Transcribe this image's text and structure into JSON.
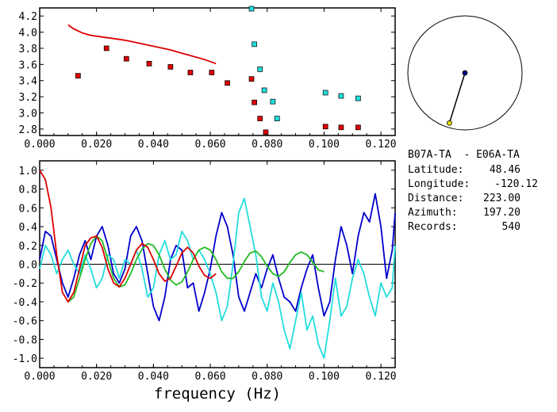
{
  "colors": {
    "red": "#dd0000",
    "blue": "#0000cc",
    "cyan": "#22dddd",
    "green": "#22bb22",
    "black": "#000000",
    "station_a_marker": "#000088",
    "station_b_marker": "#dddd00"
  },
  "info": {
    "station_pair": "B07A-TA  - E06A-TA",
    "latitude_label": "Latitude:",
    "latitude_value": "48.46",
    "longitude_label": "Longitude:",
    "longitude_value": "-120.12",
    "distance_label": "Distance:",
    "distance_value": "223.00",
    "azimuth_label": "Azimuth:",
    "azimuth_value": "197.20",
    "records_label": "Records:",
    "records_value": "540"
  },
  "map_inset": {
    "azimuth_deg": 197.2
  },
  "chart_data": [
    {
      "type": "scatter",
      "xlim": [
        0.0,
        0.125
      ],
      "ylim": [
        2.72,
        4.3
      ],
      "x_ticks": [
        "0.000",
        "0.020",
        "0.040",
        "0.060",
        "0.080",
        "0.100",
        "0.120"
      ],
      "y_ticks": [
        "2.8",
        "3.0",
        "3.2",
        "3.4",
        "3.6",
        "3.8",
        "4.0",
        "4.2"
      ],
      "x_tick_values": [
        0.0,
        0.02,
        0.04,
        0.06,
        0.08,
        0.1,
        0.12
      ],
      "y_tick_values": [
        2.8,
        3.0,
        3.2,
        3.4,
        3.6,
        3.8,
        4.0,
        4.2
      ],
      "series": [
        {
          "style": "line",
          "color": "red",
          "x": [
            0.01,
            0.012,
            0.015,
            0.018,
            0.022,
            0.026,
            0.03,
            0.034,
            0.038,
            0.042,
            0.046,
            0.05,
            0.054,
            0.058,
            0.062
          ],
          "y": [
            4.09,
            4.04,
            3.99,
            3.96,
            3.94,
            3.92,
            3.9,
            3.87,
            3.84,
            3.81,
            3.78,
            3.74,
            3.7,
            3.66,
            3.61
          ]
        },
        {
          "style": "square",
          "color": "red",
          "x": [
            0.0135,
            0.0235,
            0.0305,
            0.0385,
            0.046,
            0.053,
            0.0605,
            0.066,
            0.0745,
            0.0755,
            0.0775,
            0.0795,
            0.1005,
            0.106,
            0.112
          ],
          "y": [
            3.46,
            3.8,
            3.67,
            3.61,
            3.57,
            3.5,
            3.5,
            3.37,
            3.42,
            3.13,
            2.93,
            2.76,
            2.83,
            2.82,
            2.82
          ]
        },
        {
          "style": "square",
          "color": "cyan",
          "x": [
            0.0745,
            0.0755,
            0.0775,
            0.079,
            0.082,
            0.0835,
            0.1005,
            0.106,
            0.112
          ],
          "y": [
            4.29,
            3.85,
            3.54,
            3.28,
            3.14,
            2.93,
            3.25,
            3.21,
            3.18
          ]
        }
      ]
    },
    {
      "type": "line",
      "xlabel": "frequency (Hz)",
      "xlim": [
        0.0,
        0.125
      ],
      "ylim": [
        -1.1,
        1.1
      ],
      "x_ticks": [
        "0.000",
        "0.020",
        "0.040",
        "0.060",
        "0.080",
        "0.100",
        "0.120"
      ],
      "y_ticks": [
        "1.0",
        "0.8",
        "0.6",
        "0.4",
        "0.2",
        "0.0",
        "-0.2",
        "-0.4",
        "-0.6",
        "-0.8",
        "-1.0"
      ],
      "x_tick_values": [
        0.0,
        0.02,
        0.04,
        0.06,
        0.08,
        0.1,
        0.12
      ],
      "y_tick_values": [
        1.0,
        0.8,
        0.6,
        0.4,
        0.2,
        0.0,
        -0.2,
        -0.4,
        -0.6,
        -0.8,
        -1.0
      ],
      "series": [
        {
          "color": "blue",
          "x": [
            0.0,
            0.002,
            0.004,
            0.006,
            0.008,
            0.01,
            0.012,
            0.014,
            0.016,
            0.018,
            0.02,
            0.022,
            0.024,
            0.026,
            0.028,
            0.03,
            0.032,
            0.034,
            0.036,
            0.038,
            0.04,
            0.042,
            0.044,
            0.046,
            0.048,
            0.05,
            0.052,
            0.054,
            0.056,
            0.058,
            0.06,
            0.062,
            0.064,
            0.066,
            0.068,
            0.07,
            0.072,
            0.074,
            0.076,
            0.078,
            0.08,
            0.082,
            0.084,
            0.086,
            0.088,
            0.09,
            0.092,
            0.094,
            0.096,
            0.098,
            0.1,
            0.102,
            0.104,
            0.106,
            0.108,
            0.11,
            0.112,
            0.114,
            0.116,
            0.118,
            0.12,
            0.122,
            0.124,
            0.125
          ],
          "y": [
            0.05,
            0.35,
            0.3,
            0.05,
            -0.2,
            -0.35,
            -0.15,
            0.1,
            0.25,
            0.05,
            0.3,
            0.4,
            0.2,
            -0.1,
            -0.2,
            -0.05,
            0.3,
            0.4,
            0.25,
            -0.1,
            -0.45,
            -0.6,
            -0.35,
            0.05,
            0.2,
            0.15,
            -0.25,
            -0.2,
            -0.5,
            -0.3,
            -0.05,
            0.3,
            0.55,
            0.4,
            0.1,
            -0.35,
            -0.5,
            -0.3,
            -0.1,
            -0.25,
            -0.05,
            0.1,
            -0.15,
            -0.35,
            -0.4,
            -0.5,
            -0.25,
            -0.05,
            0.1,
            -0.25,
            -0.55,
            -0.4,
            0.05,
            0.4,
            0.2,
            -0.1,
            0.3,
            0.55,
            0.45,
            0.75,
            0.4,
            -0.15,
            0.15,
            0.55
          ]
        },
        {
          "color": "cyan",
          "x": [
            0.0,
            0.002,
            0.004,
            0.006,
            0.008,
            0.01,
            0.012,
            0.014,
            0.016,
            0.018,
            0.02,
            0.022,
            0.024,
            0.026,
            0.028,
            0.03,
            0.032,
            0.034,
            0.036,
            0.038,
            0.04,
            0.042,
            0.044,
            0.046,
            0.048,
            0.05,
            0.052,
            0.054,
            0.056,
            0.058,
            0.06,
            0.062,
            0.064,
            0.066,
            0.068,
            0.07,
            0.072,
            0.074,
            0.076,
            0.078,
            0.08,
            0.082,
            0.084,
            0.086,
            0.088,
            0.09,
            0.092,
            0.094,
            0.096,
            0.098,
            0.1,
            0.102,
            0.104,
            0.106,
            0.108,
            0.11,
            0.112,
            0.114,
            0.116,
            0.118,
            0.12,
            0.122,
            0.124,
            0.125
          ],
          "y": [
            -0.05,
            0.2,
            0.1,
            -0.1,
            0.05,
            0.15,
            0.0,
            -0.1,
            0.1,
            -0.05,
            -0.25,
            -0.15,
            0.1,
            0.05,
            -0.15,
            0.05,
            0.0,
            0.15,
            -0.05,
            -0.35,
            -0.25,
            0.1,
            0.25,
            0.05,
            0.1,
            0.35,
            0.25,
            0.05,
            0.15,
            0.05,
            -0.1,
            -0.3,
            -0.6,
            -0.45,
            0.0,
            0.55,
            0.7,
            0.4,
            0.1,
            -0.35,
            -0.5,
            -0.2,
            -0.4,
            -0.7,
            -0.9,
            -0.6,
            -0.3,
            -0.7,
            -0.55,
            -0.85,
            -1.0,
            -0.6,
            -0.15,
            -0.55,
            -0.45,
            -0.15,
            0.05,
            -0.1,
            -0.35,
            -0.55,
            -0.2,
            -0.35,
            -0.25,
            0.2
          ]
        },
        {
          "color": "green",
          "x": [
            0.01,
            0.012,
            0.014,
            0.016,
            0.018,
            0.02,
            0.022,
            0.024,
            0.026,
            0.028,
            0.03,
            0.032,
            0.034,
            0.036,
            0.038,
            0.04,
            0.042,
            0.044,
            0.046,
            0.048,
            0.05,
            0.052,
            0.054,
            0.056,
            0.058,
            0.06,
            0.062,
            0.064,
            0.066,
            0.068,
            0.07,
            0.072,
            0.074,
            0.076,
            0.078,
            0.08,
            0.082,
            0.084,
            0.086,
            0.088,
            0.09,
            0.092,
            0.094,
            0.096,
            0.098,
            0.1
          ],
          "y": [
            -0.4,
            -0.35,
            -0.15,
            0.05,
            0.22,
            0.3,
            0.25,
            0.05,
            -0.15,
            -0.24,
            -0.22,
            -0.1,
            0.05,
            0.16,
            0.22,
            0.2,
            0.1,
            -0.05,
            -0.17,
            -0.22,
            -0.19,
            -0.08,
            0.05,
            0.15,
            0.18,
            0.15,
            0.05,
            -0.08,
            -0.15,
            -0.15,
            -0.08,
            0.03,
            0.12,
            0.14,
            0.08,
            -0.02,
            -0.1,
            -0.13,
            -0.08,
            0.02,
            0.1,
            0.13,
            0.1,
            0.02,
            -0.06,
            -0.08
          ]
        },
        {
          "color": "red",
          "x": [
            0.0,
            0.002,
            0.004,
            0.006,
            0.008,
            0.01,
            0.012,
            0.014,
            0.016,
            0.018,
            0.02,
            0.022,
            0.024,
            0.026,
            0.028,
            0.03,
            0.032,
            0.034,
            0.036,
            0.038,
            0.04,
            0.042,
            0.044,
            0.046,
            0.048,
            0.05,
            0.052,
            0.054,
            0.056,
            0.058,
            0.06,
            0.062
          ],
          "y": [
            1.0,
            0.9,
            0.6,
            0.1,
            -0.3,
            -0.4,
            -0.3,
            -0.05,
            0.2,
            0.28,
            0.3,
            0.18,
            -0.05,
            -0.2,
            -0.24,
            -0.15,
            0.0,
            0.15,
            0.22,
            0.18,
            0.05,
            -0.1,
            -0.18,
            -0.15,
            -0.02,
            0.12,
            0.18,
            0.12,
            -0.02,
            -0.12,
            -0.15,
            -0.1
          ]
        }
      ]
    }
  ]
}
